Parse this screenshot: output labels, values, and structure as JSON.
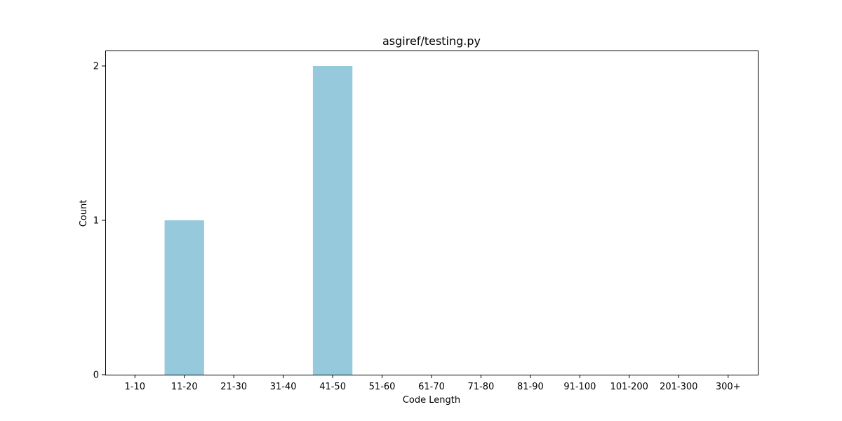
{
  "chart_data": {
    "type": "bar",
    "title": "asgiref/testing.py",
    "xlabel": "Code Length",
    "ylabel": "Count",
    "categories": [
      "1-10",
      "11-20",
      "21-30",
      "31-40",
      "41-50",
      "51-60",
      "61-70",
      "71-80",
      "81-90",
      "91-100",
      "101-200",
      "201-300",
      "300+"
    ],
    "values": [
      0,
      1,
      0,
      0,
      2,
      0,
      0,
      0,
      0,
      0,
      0,
      0,
      0
    ],
    "ylim": [
      0,
      2.1
    ],
    "yticks": [
      0,
      1,
      2
    ],
    "grid": false,
    "legend": "none",
    "bar_color": "#96c9dc"
  }
}
